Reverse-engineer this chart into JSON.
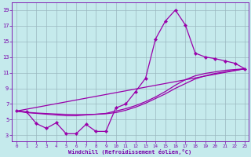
{
  "background_color": "#c5eaec",
  "line_color": "#9900aa",
  "grid_color": "#9ab8c0",
  "xlabel": "Windchill (Refroidissement éolien,°C)",
  "xlabel_color": "#7700aa",
  "tick_color": "#7700aa",
  "xmin": -0.5,
  "xmax": 23.4,
  "ymin": 2.2,
  "ymax": 20.0,
  "yticks": [
    3,
    5,
    7,
    9,
    11,
    13,
    15,
    17,
    19
  ],
  "xticks": [
    0,
    1,
    2,
    3,
    4,
    5,
    6,
    7,
    8,
    9,
    10,
    11,
    12,
    13,
    14,
    15,
    16,
    17,
    18,
    19,
    20,
    21,
    22,
    23
  ],
  "curve1_x": [
    0,
    1,
    2,
    3,
    4,
    5,
    6,
    7,
    8,
    9,
    10,
    11,
    12,
    13,
    14,
    15,
    16,
    17,
    18,
    19,
    20,
    21,
    22,
    23
  ],
  "curve1_y": [
    6.1,
    6.0,
    4.5,
    3.9,
    4.6,
    3.2,
    3.2,
    4.4,
    3.5,
    3.5,
    6.5,
    7.0,
    8.6,
    10.3,
    15.3,
    17.6,
    19.0,
    17.1,
    13.5,
    13.0,
    12.8,
    12.5,
    12.2,
    11.5
  ],
  "curve2_x": [
    0,
    23
  ],
  "curve2_y": [
    6.1,
    11.5
  ],
  "curve3_x": [
    0,
    1,
    2,
    3,
    4,
    5,
    6,
    7,
    8,
    9,
    10,
    11,
    12,
    13,
    14,
    15,
    16,
    17,
    18,
    19,
    20,
    21,
    22,
    23
  ],
  "curve3_y": [
    6.1,
    5.9,
    5.8,
    5.7,
    5.6,
    5.5,
    5.5,
    5.6,
    5.7,
    5.8,
    6.1,
    6.4,
    6.8,
    7.3,
    7.9,
    8.6,
    9.4,
    10.1,
    10.6,
    10.9,
    11.1,
    11.3,
    11.4,
    11.5
  ],
  "curve4_x": [
    0,
    1,
    2,
    3,
    4,
    5,
    6,
    7,
    8,
    9,
    10,
    11,
    12,
    13,
    14,
    15,
    16,
    17,
    18,
    19,
    20,
    21,
    22,
    23
  ],
  "curve4_y": [
    6.1,
    5.95,
    5.85,
    5.78,
    5.72,
    5.68,
    5.65,
    5.65,
    5.68,
    5.75,
    5.9,
    6.2,
    6.6,
    7.1,
    7.7,
    8.3,
    9.0,
    9.6,
    10.2,
    10.6,
    10.9,
    11.1,
    11.3,
    11.5
  ]
}
